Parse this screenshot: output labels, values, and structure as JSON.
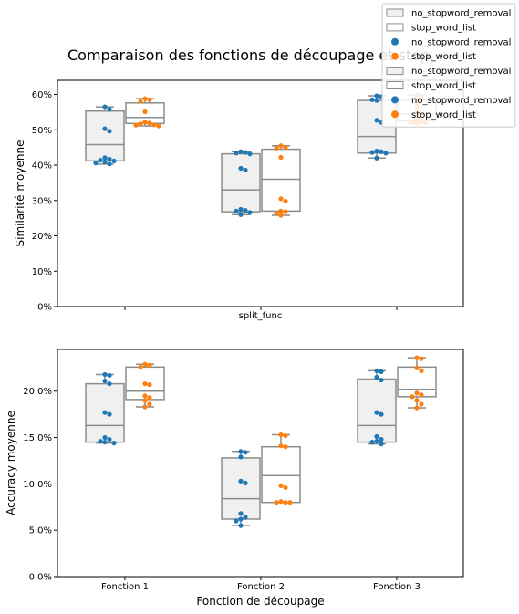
{
  "figure": {
    "title": "Comparaison des fonctions de découpage et stop"
  },
  "legend": {
    "placement": "top-right",
    "entries": [
      {
        "label": "no_stopword_removal",
        "kind": "box",
        "color": "#f0f0f0"
      },
      {
        "label": "stop_word_list",
        "kind": "box",
        "color": "#ffffff"
      },
      {
        "label": "no_stopword_removal",
        "kind": "point",
        "color": "#1f77b4"
      },
      {
        "label": "stop_word_list",
        "kind": "point",
        "color": "#ff7f0e"
      },
      {
        "label": "no_stopword_removal",
        "kind": "box",
        "color": "#f0f0f0"
      },
      {
        "label": "stop_word_list",
        "kind": "box",
        "color": "#ffffff"
      },
      {
        "label": "no_stopword_removal",
        "kind": "point",
        "color": "#1f77b4"
      },
      {
        "label": "stop_word_list",
        "kind": "point",
        "color": "#ff7f0e"
      }
    ]
  },
  "colors": {
    "no_stopword_removal": "#1f77b4",
    "stop_word_list": "#ff7f0e",
    "box_fill_1": "#f0f0f0",
    "box_fill_2": "#ffffff",
    "box_edge": "#8c8c8c"
  },
  "chart_data": [
    {
      "type": "box",
      "overlay": "swarm",
      "xlabel": "split_func",
      "ylabel": "Similarité moyenne",
      "ylim": [
        0,
        0.64
      ],
      "yticks": [
        0,
        0.1,
        0.2,
        0.3,
        0.4,
        0.5,
        0.6
      ],
      "ytick_labels": [
        "0%",
        "10%",
        "20%",
        "30%",
        "40%",
        "50%",
        "60%"
      ],
      "show_x_tick_labels": false,
      "grid": false,
      "categories": [
        "Fonction 1",
        "Fonction 2",
        "Fonction 3"
      ],
      "series": [
        {
          "name": "no_stopword_removal",
          "groups": [
            {
              "whisker_low": 0.403,
              "q1": 0.412,
              "median": 0.458,
              "q3": 0.553,
              "whisker_high": 0.565,
              "points": [
                0.565,
                0.558,
                0.503,
                0.496,
                0.421,
                0.417,
                0.414,
                0.412,
                0.409,
                0.406,
                0.403
              ]
            },
            {
              "whisker_low": 0.26,
              "q1": 0.268,
              "median": 0.33,
              "q3": 0.432,
              "whisker_high": 0.438,
              "points": [
                0.438,
                0.436,
                0.434,
                0.432,
                0.391,
                0.386,
                0.275,
                0.272,
                0.27,
                0.266,
                0.26
              ]
            },
            {
              "whisker_low": 0.42,
              "q1": 0.434,
              "median": 0.481,
              "q3": 0.583,
              "whisker_high": 0.596,
              "points": [
                0.596,
                0.594,
                0.585,
                0.583,
                0.527,
                0.521,
                0.44,
                0.438,
                0.436,
                0.434,
                0.42
              ]
            }
          ]
        },
        {
          "name": "stop_word_list",
          "groups": [
            {
              "whisker_low": 0.511,
              "q1": 0.518,
              "median": 0.535,
              "q3": 0.576,
              "whisker_high": 0.588,
              "points": [
                0.588,
                0.585,
                0.58,
                0.551,
                0.522,
                0.519,
                0.517,
                0.514,
                0.513,
                0.511
              ]
            },
            {
              "whisker_low": 0.258,
              "q1": 0.27,
              "median": 0.36,
              "q3": 0.445,
              "whisker_high": 0.455,
              "points": [
                0.455,
                0.45,
                0.448,
                0.422,
                0.305,
                0.298,
                0.27,
                0.268,
                0.264,
                0.258
              ]
            },
            {
              "whisker_low": 0.518,
              "q1": 0.525,
              "median": 0.545,
              "q3": 0.584,
              "whisker_high": 0.598,
              "points": [
                0.598,
                0.592,
                0.572,
                0.56,
                0.545,
                0.53,
                0.525,
                0.522,
                0.52,
                0.518
              ]
            }
          ]
        }
      ]
    },
    {
      "type": "box",
      "overlay": "swarm",
      "xlabel": "Fonction de découpage",
      "ylabel": "Accuracy moyenne",
      "ylim": [
        0,
        0.245
      ],
      "yticks": [
        0,
        0.05,
        0.1,
        0.15,
        0.2
      ],
      "ytick_labels": [
        "0.0%",
        "5.0%",
        "10.0%",
        "15.0%",
        "20.0%"
      ],
      "show_x_tick_labels": true,
      "grid": false,
      "categories": [
        "Fonction 1",
        "Fonction 2",
        "Fonction 3"
      ],
      "series": [
        {
          "name": "no_stopword_removal",
          "groups": [
            {
              "whisker_low": 0.144,
              "q1": 0.145,
              "median": 0.163,
              "q3": 0.208,
              "whisker_high": 0.218,
              "points": [
                0.218,
                0.217,
                0.211,
                0.208,
                0.177,
                0.175,
                0.15,
                0.148,
                0.146,
                0.145,
                0.144
              ]
            },
            {
              "whisker_low": 0.055,
              "q1": 0.062,
              "median": 0.084,
              "q3": 0.128,
              "whisker_high": 0.135,
              "points": [
                0.135,
                0.134,
                0.129,
                0.103,
                0.101,
                0.068,
                0.064,
                0.062,
                0.06,
                0.055
              ]
            },
            {
              "whisker_low": 0.143,
              "q1": 0.145,
              "median": 0.163,
              "q3": 0.213,
              "whisker_high": 0.222,
              "points": [
                0.222,
                0.221,
                0.215,
                0.212,
                0.177,
                0.175,
                0.151,
                0.148,
                0.146,
                0.145,
                0.143
              ]
            }
          ]
        },
        {
          "name": "stop_word_list",
          "groups": [
            {
              "whisker_low": 0.183,
              "q1": 0.191,
              "median": 0.2,
              "q3": 0.226,
              "whisker_high": 0.229,
              "points": [
                0.229,
                0.228,
                0.226,
                0.208,
                0.207,
                0.195,
                0.193,
                0.19,
                0.186,
                0.183
              ]
            },
            {
              "whisker_low": 0.08,
              "q1": 0.08,
              "median": 0.109,
              "q3": 0.14,
              "whisker_high": 0.153,
              "points": [
                0.153,
                0.152,
                0.141,
                0.14,
                0.098,
                0.096,
                0.081,
                0.08,
                0.08,
                0.08
              ]
            },
            {
              "whisker_low": 0.182,
              "q1": 0.194,
              "median": 0.202,
              "q3": 0.226,
              "whisker_high": 0.236,
              "points": [
                0.236,
                0.235,
                0.225,
                0.222,
                0.198,
                0.196,
                0.194,
                0.19,
                0.186,
                0.182
              ]
            }
          ]
        }
      ]
    }
  ]
}
